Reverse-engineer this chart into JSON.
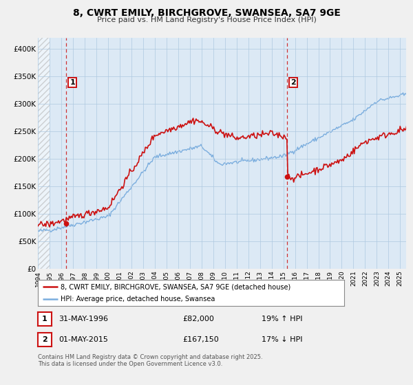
{
  "title": "8, CWRT EMILY, BIRCHGROVE, SWANSEA, SA7 9GE",
  "subtitle": "Price paid vs. HM Land Registry's House Price Index (HPI)",
  "ylim": [
    0,
    420000
  ],
  "yticks": [
    0,
    50000,
    100000,
    150000,
    200000,
    250000,
    300000,
    350000,
    400000
  ],
  "ytick_labels": [
    "£0",
    "£50K",
    "£100K",
    "£150K",
    "£200K",
    "£250K",
    "£300K",
    "£350K",
    "£400K"
  ],
  "bg_color": "#f0f0f0",
  "plot_bg_color": "#dce9f5",
  "hpi_color": "#7aadde",
  "price_color": "#cc1111",
  "grid_color": "#adc8e0",
  "marker1_x": 1996.41,
  "marker1_y": 82000,
  "marker1_label": "1",
  "marker1_date": "31-MAY-1996",
  "marker1_price": "£82,000",
  "marker1_hpi": "19% ↑ HPI",
  "marker2_x": 2015.33,
  "marker2_y": 167150,
  "marker2_label": "2",
  "marker2_date": "01-MAY-2015",
  "marker2_price": "£167,150",
  "marker2_hpi": "17% ↓ HPI",
  "legend_line1": "8, CWRT EMILY, BIRCHGROVE, SWANSEA, SA7 9GE (detached house)",
  "legend_line2": "HPI: Average price, detached house, Swansea",
  "footer": "Contains HM Land Registry data © Crown copyright and database right 2025.\nThis data is licensed under the Open Government Licence v3.0.",
  "xmin": 1994.0,
  "xmax": 2025.5
}
